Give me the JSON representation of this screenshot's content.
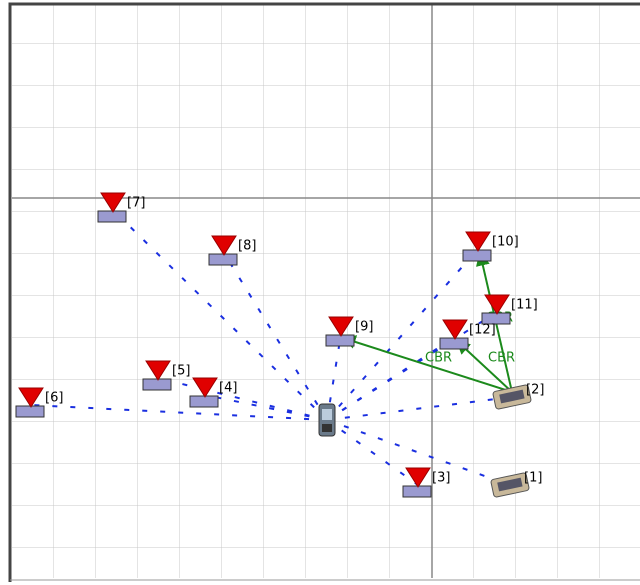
{
  "nodes": [
    {
      "label": "[1]"
    },
    {
      "label": "[2]"
    },
    {
      "label": "[3]"
    },
    {
      "label": "[4]"
    },
    {
      "label": "[5]"
    },
    {
      "label": "[6]"
    },
    {
      "label": "[7]"
    },
    {
      "label": "[8]"
    },
    {
      "label": "[9]"
    },
    {
      "label": "[10]"
    },
    {
      "label": "[11]"
    },
    {
      "label": "[12]"
    }
  ],
  "flows": [
    {
      "label": "CBR"
    },
    {
      "label": "CBR"
    },
    {
      "label": "CBR"
    }
  ]
}
